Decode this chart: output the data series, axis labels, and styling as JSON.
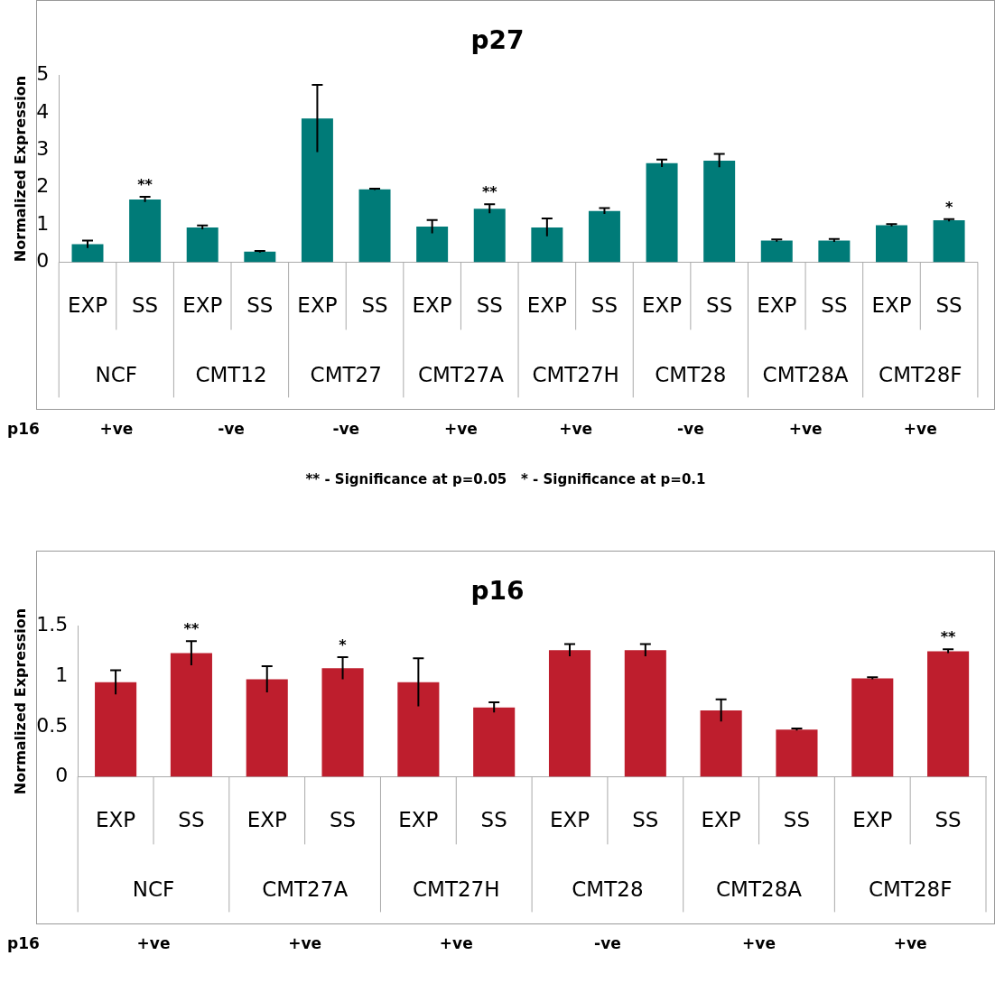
{
  "chart_data": [
    {
      "type": "bar",
      "title": "p27",
      "ylabel": "Normalized Expression",
      "categories": [
        "EXP",
        "SS",
        "EXP",
        "SS",
        "EXP",
        "SS",
        "EXP",
        "SS",
        "EXP",
        "SS",
        "EXP",
        "SS",
        "EXP",
        "SS",
        "EXP",
        "SS"
      ],
      "values": [
        0.48,
        1.68,
        0.93,
        0.28,
        3.85,
        1.95,
        0.95,
        1.43,
        0.93,
        1.37,
        2.65,
        2.72,
        0.58,
        0.58,
        0.99,
        1.12
      ],
      "errors": [
        0.1,
        0.07,
        0.05,
        0.02,
        0.9,
        0.02,
        0.18,
        0.12,
        0.24,
        0.08,
        0.1,
        0.18,
        0.03,
        0.04,
        0.03,
        0.03
      ],
      "value_labels": [
        null,
        "**",
        null,
        null,
        null,
        null,
        null,
        "**",
        null,
        null,
        null,
        null,
        null,
        null,
        null,
        "*"
      ],
      "color": "#007b78",
      "ylim": [
        0,
        5
      ],
      "yticks": [
        0,
        1,
        2,
        3,
        4,
        5
      ],
      "grid": false,
      "legend": false,
      "annotations": [
        "NCF",
        "CMT12",
        "CMT27",
        "CMT27A",
        "CMT27H",
        "CMT28",
        "CMT28A",
        "CMT28F",
        "p16",
        "+ve",
        "-ve",
        "-ve",
        "+ve",
        "+ve",
        "-ve",
        "+ve",
        "+ve",
        "** - Significance at p=0.05   * - Significance at p=0.1"
      ]
    },
    {
      "type": "bar",
      "title": "p16",
      "ylabel": "Normalized Expression",
      "categories": [
        "EXP",
        "SS",
        "EXP",
        "SS",
        "EXP",
        "SS",
        "EXP",
        "SS",
        "EXP",
        "SS",
        "EXP",
        "SS"
      ],
      "values": [
        0.94,
        1.23,
        0.97,
        1.08,
        0.94,
        0.69,
        1.26,
        1.26,
        0.66,
        0.47,
        0.98,
        1.25
      ],
      "errors": [
        0.12,
        0.12,
        0.13,
        0.11,
        0.24,
        0.05,
        0.06,
        0.06,
        0.11,
        0.01,
        0.01,
        0.02
      ],
      "value_labels": [
        null,
        "**",
        null,
        "*",
        null,
        null,
        null,
        null,
        null,
        null,
        null,
        "**"
      ],
      "color": "#be1e2d",
      "ylim": [
        0,
        1.5
      ],
      "yticks": [
        0,
        0.5,
        1,
        1.5
      ],
      "grid": false,
      "legend": false,
      "annotations": [
        "NCF",
        "CMT27A",
        "CMT27H",
        "CMT28",
        "CMT28A",
        "CMT28F",
        "p16",
        "+ve",
        "+ve",
        "+ve",
        "-ve",
        "+ve",
        "+ve"
      ]
    }
  ]
}
